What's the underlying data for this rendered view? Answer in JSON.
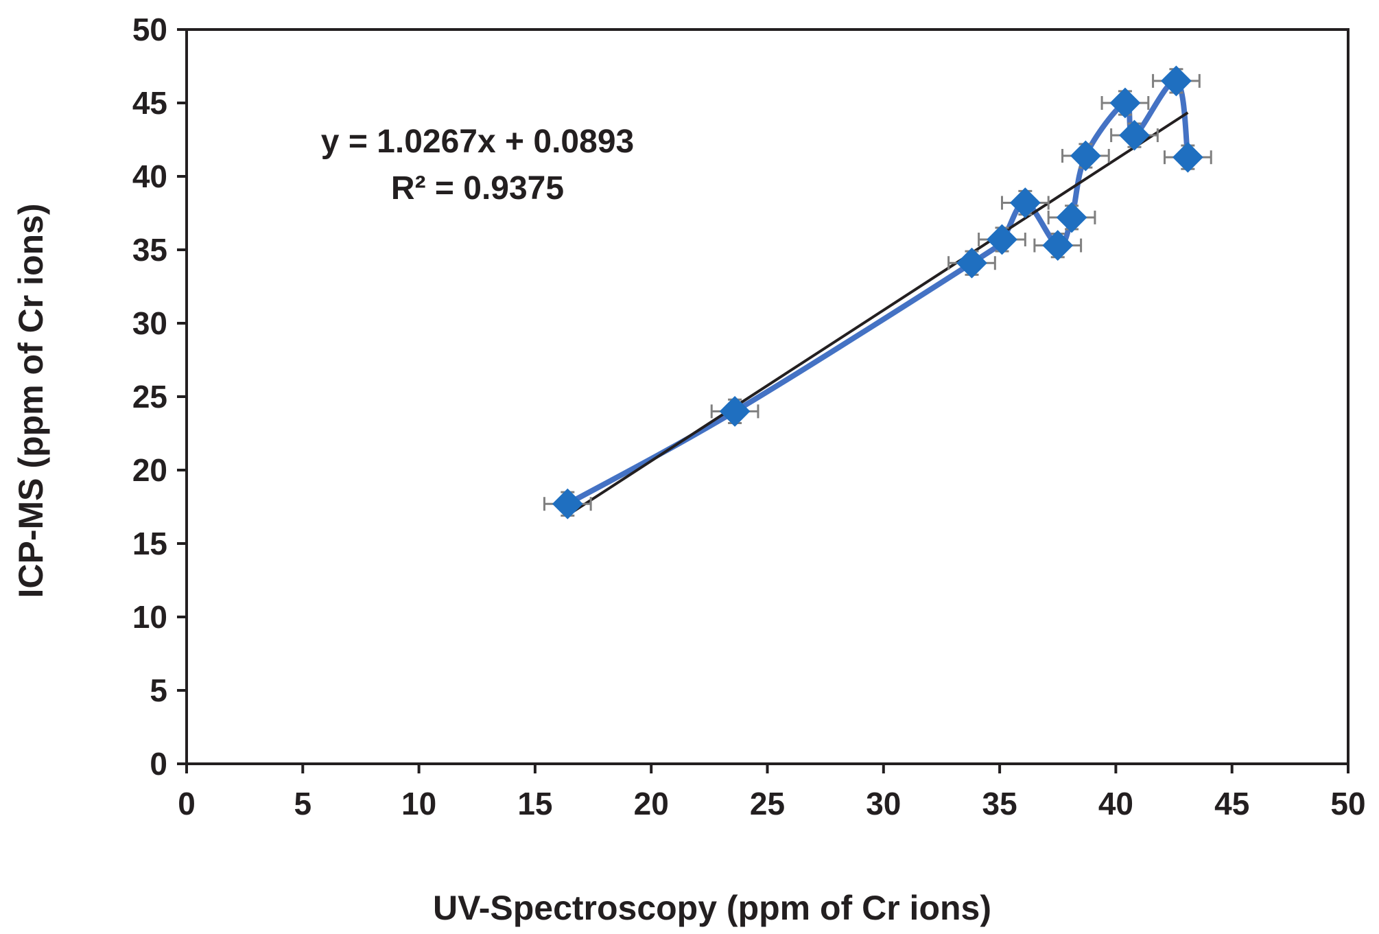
{
  "chart_data": {
    "type": "scatter",
    "xlabel": "UV-Spectroscopy (ppm of Cr ions)",
    "ylabel": "ICP-MS (ppm of Cr ions)",
    "xlim": [
      0,
      50
    ],
    "ylim": [
      0,
      50
    ],
    "xticks": [
      0,
      5,
      10,
      15,
      20,
      25,
      30,
      35,
      40,
      45,
      50
    ],
    "yticks": [
      0,
      5,
      10,
      15,
      20,
      25,
      30,
      35,
      40,
      45,
      50
    ],
    "grid": false,
    "legend": "none",
    "series": [
      {
        "type": "line+markers",
        "marker": "diamond",
        "color": "#1f6fc0",
        "line_color": "#4472c4",
        "x": [
          16.4,
          23.6,
          33.8,
          35.1,
          36.1,
          37.5,
          38.1,
          38.7,
          40.4,
          40.8,
          42.6,
          43.1
        ],
        "y": [
          17.7,
          24.0,
          34.1,
          35.7,
          38.2,
          35.3,
          37.2,
          41.4,
          45.0,
          42.8,
          46.5,
          41.3
        ],
        "x_error": [
          1.0,
          1.0,
          1.0,
          1.0,
          1.0,
          1.0,
          1.0,
          1.0,
          1.0,
          1.0,
          1.0,
          1.0
        ],
        "y_error": [
          0.8,
          0.8,
          0.8,
          0.8,
          0.8,
          0.8,
          0.8,
          0.8,
          0.8,
          0.8,
          0.8,
          0.8
        ],
        "error_bar_color": "#7f7f7f"
      }
    ],
    "trendline": {
      "type": "linear",
      "slope": 1.0267,
      "intercept": 0.0893,
      "x_range": [
        16.4,
        43.1
      ],
      "color": "#231f20"
    },
    "annotations": {
      "equation": "y = 1.0267x + 0.0893",
      "r_squared": "R² = 0.9375"
    }
  }
}
